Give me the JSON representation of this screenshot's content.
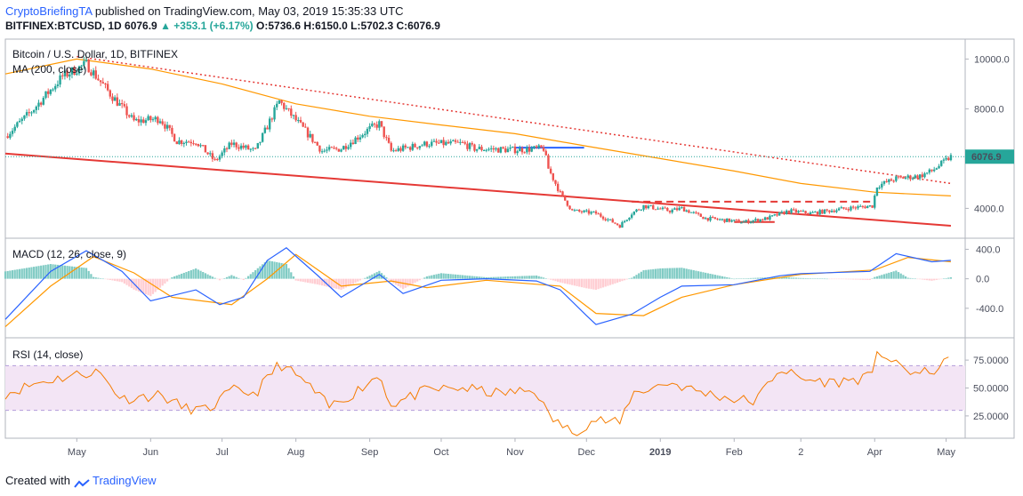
{
  "header": {
    "author": "CryptoBriefingTA",
    "published": "published on TradingView.com, May 03, 2019 15:35:33 UTC",
    "symbol_line": "BITFINEX:BTCUSD, 1D",
    "last": "6076.9",
    "change": "▲ +353.1 (+6.17%)",
    "ohlc_o_label": "O:",
    "ohlc_o": "5736.6",
    "ohlc_h_label": "H:",
    "ohlc_h": "6150.0",
    "ohlc_l_label": "L:",
    "ohlc_l": "5702.3",
    "ohlc_c_label": "C:",
    "ohlc_c": "6076.9"
  },
  "footer": {
    "created_with": "Created with",
    "brand": "TradingView"
  },
  "colors": {
    "up": "#26a69a",
    "down": "#ef5350",
    "ma": "#ff9800",
    "macd": "#2962ff",
    "signal": "#ff9800",
    "rsi": "#f57c00",
    "trend": "#e53935",
    "accent": "#2962ff"
  },
  "chart_data": [
    {
      "type": "candlestick",
      "title": "Bitcoin / U.S. Dollar, 1D, BITFINEX",
      "indicator": "MA (200, close)",
      "last_price_label": "6076.9",
      "y_ticks": [
        "10000.0",
        "8000.0",
        "6000.0",
        "4000.0"
      ],
      "y_tick_values": [
        10000,
        8000,
        6000,
        4000
      ],
      "ylim": [
        2800,
        10800
      ],
      "x_ticks": [
        "May",
        "Jun",
        "Jul",
        "Aug",
        "Sep",
        "Oct",
        "Nov",
        "Dec",
        "2019",
        "Feb",
        "2",
        "Apr",
        "May"
      ],
      "price_path": [
        [
          "2018-04-01",
          6900
        ],
        [
          "2018-04-12",
          7900
        ],
        [
          "2018-04-25",
          9300
        ],
        [
          "2018-05-05",
          9800
        ],
        [
          "2018-05-15",
          8600
        ],
        [
          "2018-05-25",
          7500
        ],
        [
          "2018-06-05",
          7600
        ],
        [
          "2018-06-12",
          6700
        ],
        [
          "2018-06-20",
          6700
        ],
        [
          "2018-06-28",
          5900
        ],
        [
          "2018-07-05",
          6600
        ],
        [
          "2018-07-15",
          6300
        ],
        [
          "2018-07-25",
          8300
        ],
        [
          "2018-08-05",
          7100
        ],
        [
          "2018-08-12",
          6300
        ],
        [
          "2018-08-20",
          6400
        ],
        [
          "2018-09-01",
          7200
        ],
        [
          "2018-09-05",
          7400
        ],
        [
          "2018-09-10",
          6300
        ],
        [
          "2018-09-25",
          6600
        ],
        [
          "2018-10-10",
          6600
        ],
        [
          "2018-10-15",
          6400
        ],
        [
          "2018-10-31",
          6350
        ],
        [
          "2018-11-13",
          6400
        ],
        [
          "2018-11-15",
          5600
        ],
        [
          "2018-11-20",
          4600
        ],
        [
          "2018-11-25",
          3900
        ],
        [
          "2018-12-05",
          3800
        ],
        [
          "2018-12-15",
          3300
        ],
        [
          "2018-12-20",
          3800
        ],
        [
          "2018-12-25",
          4100
        ],
        [
          "2019-01-05",
          3900
        ],
        [
          "2019-01-10",
          4000
        ],
        [
          "2019-01-20",
          3600
        ],
        [
          "2019-02-05",
          3450
        ],
        [
          "2019-02-15",
          3600
        ],
        [
          "2019-02-24",
          3900
        ],
        [
          "2019-03-05",
          3800
        ],
        [
          "2019-03-20",
          4000
        ],
        [
          "2019-03-31",
          4100
        ],
        [
          "2019-04-02",
          4900
        ],
        [
          "2019-04-10",
          5200
        ],
        [
          "2019-04-20",
          5300
        ],
        [
          "2019-04-25",
          5500
        ],
        [
          "2019-05-03",
          6077
        ]
      ],
      "ma200_path": [
        [
          "2018-04-01",
          9400
        ],
        [
          "2018-05-01",
          10000
        ],
        [
          "2018-06-01",
          9600
        ],
        [
          "2018-07-01",
          9000
        ],
        [
          "2018-08-01",
          8200
        ],
        [
          "2018-09-01",
          7700
        ],
        [
          "2018-10-01",
          7350
        ],
        [
          "2018-11-01",
          7000
        ],
        [
          "2018-12-01",
          6500
        ],
        [
          "2019-01-01",
          6000
        ],
        [
          "2019-02-01",
          5500
        ],
        [
          "2019-03-01",
          5000
        ],
        [
          "2019-04-01",
          4650
        ],
        [
          "2019-05-03",
          4500
        ]
      ],
      "trendline_upper": [
        [
          "2018-05-01",
          10100
        ],
        [
          "2019-05-03",
          5000
        ]
      ],
      "trendline_lower": [
        [
          "2018-04-01",
          6200
        ],
        [
          "2019-05-03",
          3300
        ]
      ],
      "horizontal_levels": [
        {
          "value": 6440,
          "from": "2018-11-01",
          "to": "2018-11-30",
          "style": "solid",
          "color": "#2962ff"
        },
        {
          "value": 4270,
          "from": "2018-12-20",
          "to": "2019-04-01",
          "style": "dashed",
          "color": "#e53935"
        },
        {
          "value": 3450,
          "from": "2019-02-01",
          "to": "2019-02-18",
          "style": "solid",
          "color": "#e53935"
        }
      ]
    },
    {
      "type": "line",
      "title": "MACD (12, 26, close, 9)",
      "y_ticks": [
        "400.0",
        "0.0",
        "-400.0"
      ],
      "y_tick_values": [
        400,
        0,
        -400
      ],
      "ylim": [
        -800,
        550
      ],
      "series": [
        {
          "name": "MACD",
          "points": [
            [
              "2018-04-01",
              -550
            ],
            [
              "2018-04-20",
              100
            ],
            [
              "2018-05-05",
              380
            ],
            [
              "2018-05-20",
              100
            ],
            [
              "2018-06-01",
              -300
            ],
            [
              "2018-06-20",
              -150
            ],
            [
              "2018-06-30",
              -350
            ],
            [
              "2018-07-10",
              -250
            ],
            [
              "2018-07-20",
              250
            ],
            [
              "2018-07-28",
              420
            ],
            [
              "2018-08-10",
              50
            ],
            [
              "2018-08-20",
              -250
            ],
            [
              "2018-09-05",
              60
            ],
            [
              "2018-09-15",
              -200
            ],
            [
              "2018-10-01",
              -20
            ],
            [
              "2018-10-20",
              0
            ],
            [
              "2018-11-10",
              -30
            ],
            [
              "2018-11-20",
              -150
            ],
            [
              "2018-12-01",
              -500
            ],
            [
              "2018-12-05",
              -620
            ],
            [
              "2018-12-20",
              -480
            ],
            [
              "2019-01-01",
              -250
            ],
            [
              "2019-01-10",
              -100
            ],
            [
              "2019-02-01",
              -80
            ],
            [
              "2019-02-20",
              40
            ],
            [
              "2019-03-01",
              70
            ],
            [
              "2019-03-30",
              100
            ],
            [
              "2019-04-10",
              340
            ],
            [
              "2019-04-25",
              230
            ],
            [
              "2019-05-03",
              250
            ]
          ]
        },
        {
          "name": "Signal",
          "points": [
            [
              "2018-04-01",
              -650
            ],
            [
              "2018-04-20",
              -100
            ],
            [
              "2018-05-08",
              300
            ],
            [
              "2018-05-25",
              80
            ],
            [
              "2018-06-10",
              -250
            ],
            [
              "2018-07-05",
              -350
            ],
            [
              "2018-07-20",
              0
            ],
            [
              "2018-08-01",
              330
            ],
            [
              "2018-08-20",
              -100
            ],
            [
              "2018-09-10",
              -30
            ],
            [
              "2018-09-25",
              -120
            ],
            [
              "2018-10-20",
              -20
            ],
            [
              "2018-11-20",
              -100
            ],
            [
              "2018-12-05",
              -470
            ],
            [
              "2018-12-25",
              -500
            ],
            [
              "2019-01-10",
              -250
            ],
            [
              "2019-02-01",
              -80
            ],
            [
              "2019-03-01",
              60
            ],
            [
              "2019-04-01",
              120
            ],
            [
              "2019-04-15",
              290
            ],
            [
              "2019-05-03",
              230
            ]
          ]
        }
      ]
    },
    {
      "type": "line",
      "title": "RSI (14, close)",
      "y_ticks": [
        "75.0000",
        "50.0000",
        "25.0000"
      ],
      "y_tick_values": [
        75,
        50,
        25
      ],
      "ylim": [
        5,
        95
      ],
      "band": [
        30,
        70
      ],
      "series": [
        {
          "name": "RSI",
          "points": [
            [
              "2018-04-01",
              45
            ],
            [
              "2018-04-15",
              55
            ],
            [
              "2018-05-01",
              62
            ],
            [
              "2018-05-10",
              65
            ],
            [
              "2018-05-20",
              40
            ],
            [
              "2018-06-05",
              44
            ],
            [
              "2018-06-15",
              32
            ],
            [
              "2018-06-25",
              30
            ],
            [
              "2018-07-05",
              48
            ],
            [
              "2018-07-15",
              45
            ],
            [
              "2018-07-25",
              72
            ],
            [
              "2018-08-05",
              55
            ],
            [
              "2018-08-15",
              33
            ],
            [
              "2018-08-25",
              45
            ],
            [
              "2018-09-05",
              62
            ],
            [
              "2018-09-10",
              35
            ],
            [
              "2018-09-25",
              48
            ],
            [
              "2018-10-10",
              50
            ],
            [
              "2018-10-25",
              45
            ],
            [
              "2018-11-10",
              48
            ],
            [
              "2018-11-15",
              25
            ],
            [
              "2018-11-25",
              10
            ],
            [
              "2018-12-05",
              22
            ],
            [
              "2018-12-15",
              18
            ],
            [
              "2018-12-20",
              45
            ],
            [
              "2019-01-05",
              55
            ],
            [
              "2019-01-15",
              48
            ],
            [
              "2019-02-01",
              40
            ],
            [
              "2019-02-10",
              38
            ],
            [
              "2019-02-20",
              68
            ],
            [
              "2019-03-01",
              58
            ],
            [
              "2019-03-15",
              55
            ],
            [
              "2019-03-31",
              60
            ],
            [
              "2019-04-02",
              85
            ],
            [
              "2019-04-10",
              70
            ],
            [
              "2019-04-20",
              62
            ],
            [
              "2019-04-28",
              68
            ],
            [
              "2019-05-03",
              76
            ]
          ]
        }
      ]
    }
  ]
}
